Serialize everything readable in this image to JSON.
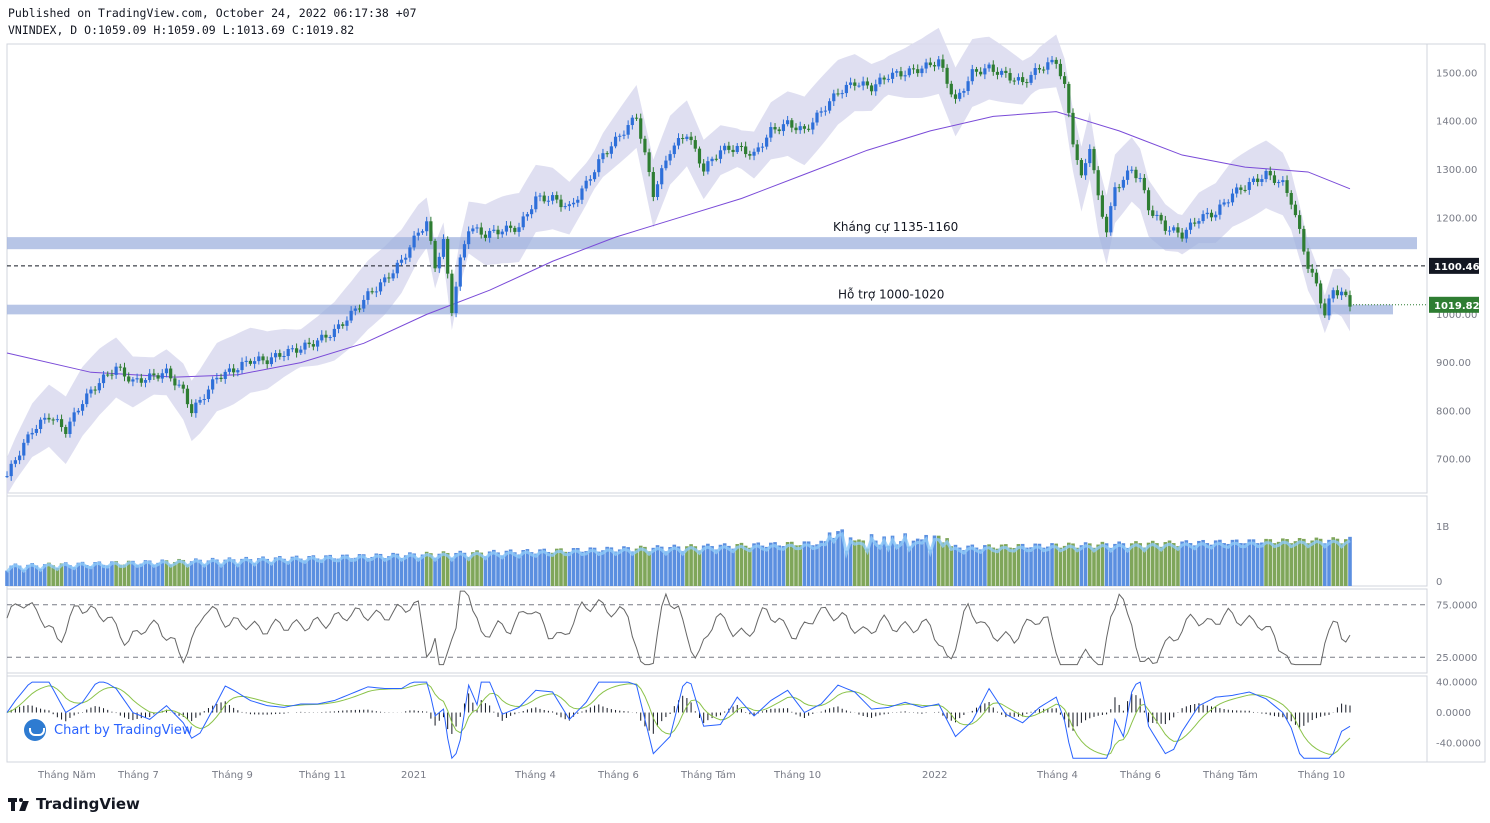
{
  "header": {
    "published_line": "Published on TradingView.com, October 24, 2022 06:17:38 +07",
    "ohlc_line": "VNINDEX, D O:1059.09 H:1059.09 L:1013.69 C:1019.82"
  },
  "colors": {
    "up_candle": "#2e6fd9",
    "down_candle": "#2e7d32",
    "volume_up": "#5b8fe0",
    "volume_down": "#7fa65a",
    "bollinger_fill": "#d9d9ee",
    "ma_line": "#7a4bd8",
    "zone_fill": "#9fb1dd",
    "rsi_line": "#666666",
    "macd_line": "#2962ff",
    "signal_line": "#8bc34a",
    "price_tag_dark": "#131722",
    "price_tag_green": "#2e7d32"
  },
  "chart_data": {
    "type": "line",
    "title": "VNINDEX, D",
    "price_panel": {
      "ylim": [
        630,
        1560
      ],
      "y_ticks": [
        "1500.00",
        "1400.00",
        "1300.00",
        "1200.00",
        "1100.00",
        "1000.00",
        "900.00",
        "800.00",
        "700.00"
      ],
      "x_tick_labels": [
        "Tháng Năm",
        "Tháng 7",
        "Tháng 9",
        "Tháng 11",
        "2021",
        "Tháng 4",
        "Tháng 6",
        "Tháng Tám",
        "Tháng 10",
        "2022",
        "Tháng 4",
        "Tháng 6",
        "Tháng Tám",
        "Tháng 10"
      ],
      "close_series": [
        [
          0,
          665
        ],
        [
          2,
          700
        ],
        [
          6,
          760
        ],
        [
          10,
          790
        ],
        [
          14,
          760
        ],
        [
          18,
          820
        ],
        [
          22,
          860
        ],
        [
          26,
          890
        ],
        [
          30,
          860
        ],
        [
          34,
          870
        ],
        [
          38,
          880
        ],
        [
          42,
          840
        ],
        [
          44,
          800
        ],
        [
          46,
          820
        ],
        [
          50,
          870
        ],
        [
          54,
          885
        ],
        [
          58,
          905
        ],
        [
          62,
          905
        ],
        [
          66,
          920
        ],
        [
          70,
          930
        ],
        [
          74,
          945
        ],
        [
          78,
          965
        ],
        [
          82,
          1000
        ],
        [
          86,
          1040
        ],
        [
          90,
          1070
        ],
        [
          94,
          1110
        ],
        [
          98,
          1170
        ],
        [
          100,
          1190
        ],
        [
          102,
          1100
        ],
        [
          104,
          1150
        ],
        [
          106,
          1010
        ],
        [
          108,
          1110
        ],
        [
          110,
          1180
        ],
        [
          114,
          1165
        ],
        [
          118,
          1175
        ],
        [
          122,
          1180
        ],
        [
          126,
          1240
        ],
        [
          130,
          1240
        ],
        [
          134,
          1220
        ],
        [
          138,
          1270
        ],
        [
          142,
          1330
        ],
        [
          146,
          1370
        ],
        [
          150,
          1410
        ],
        [
          152,
          1330
        ],
        [
          154,
          1250
        ],
        [
          158,
          1340
        ],
        [
          162,
          1375
        ],
        [
          166,
          1300
        ],
        [
          170,
          1340
        ],
        [
          174,
          1345
        ],
        [
          178,
          1330
        ],
        [
          182,
          1380
        ],
        [
          186,
          1395
        ],
        [
          190,
          1380
        ],
        [
          194,
          1420
        ],
        [
          198,
          1460
        ],
        [
          202,
          1480
        ],
        [
          206,
          1470
        ],
        [
          210,
          1495
        ],
        [
          214,
          1500
        ],
        [
          218,
          1510
        ],
        [
          222,
          1525
        ],
        [
          226,
          1440
        ],
        [
          230,
          1500
        ],
        [
          234,
          1510
        ],
        [
          238,
          1495
        ],
        [
          242,
          1480
        ],
        [
          246,
          1510
        ],
        [
          250,
          1525
        ],
        [
          252,
          1470
        ],
        [
          254,
          1360
        ],
        [
          256,
          1280
        ],
        [
          258,
          1350
        ],
        [
          260,
          1240
        ],
        [
          262,
          1175
        ],
        [
          264,
          1260
        ],
        [
          268,
          1300
        ],
        [
          270,
          1280
        ],
        [
          272,
          1220
        ],
        [
          276,
          1180
        ],
        [
          280,
          1165
        ],
        [
          284,
          1200
        ],
        [
          288,
          1210
        ],
        [
          292,
          1250
        ],
        [
          296,
          1270
        ],
        [
          300,
          1290
        ],
        [
          304,
          1270
        ],
        [
          306,
          1235
        ],
        [
          308,
          1170
        ],
        [
          310,
          1100
        ],
        [
          312,
          1060
        ],
        [
          314,
          1000
        ],
        [
          316,
          1050
        ],
        [
          318,
          1045
        ],
        [
          320,
          1019.82
        ]
      ],
      "ma_series": [
        [
          0,
          920
        ],
        [
          20,
          880
        ],
        [
          40,
          870
        ],
        [
          55,
          875
        ],
        [
          70,
          900
        ],
        [
          85,
          940
        ],
        [
          100,
          1000
        ],
        [
          115,
          1050
        ],
        [
          130,
          1110
        ],
        [
          145,
          1160
        ],
        [
          160,
          1200
        ],
        [
          175,
          1240
        ],
        [
          190,
          1290
        ],
        [
          205,
          1340
        ],
        [
          220,
          1380
        ],
        [
          235,
          1410
        ],
        [
          250,
          1420
        ],
        [
          265,
          1380
        ],
        [
          280,
          1330
        ],
        [
          295,
          1305
        ],
        [
          310,
          1295
        ],
        [
          320,
          1260
        ]
      ],
      "bollinger_band_width": 55,
      "zones": [
        {
          "label": "Kháng cự 1135-1160",
          "low": 1135,
          "high": 1160
        },
        {
          "label": "Hỗ trợ 1000-1020",
          "low": 1000,
          "high": 1020
        }
      ],
      "horizontal_line": 1100.46,
      "price_tags": [
        {
          "label": "1100.46",
          "value": 1100.46,
          "style": "dark"
        },
        {
          "label": "1019.82",
          "value": 1019.82,
          "style": "green"
        }
      ]
    },
    "volume_panel": {
      "y_ticks": [
        "1B",
        "0"
      ]
    },
    "rsi_panel": {
      "y_ticks": [
        "75.0000",
        "25.0000"
      ],
      "levels": [
        75,
        25
      ]
    },
    "macd_panel": {
      "y_ticks": [
        "40.0000",
        "0.0000",
        "-40.0000"
      ]
    }
  },
  "branding": {
    "chart_by": "Chart by TradingView",
    "footer_logo": "TradingView"
  }
}
